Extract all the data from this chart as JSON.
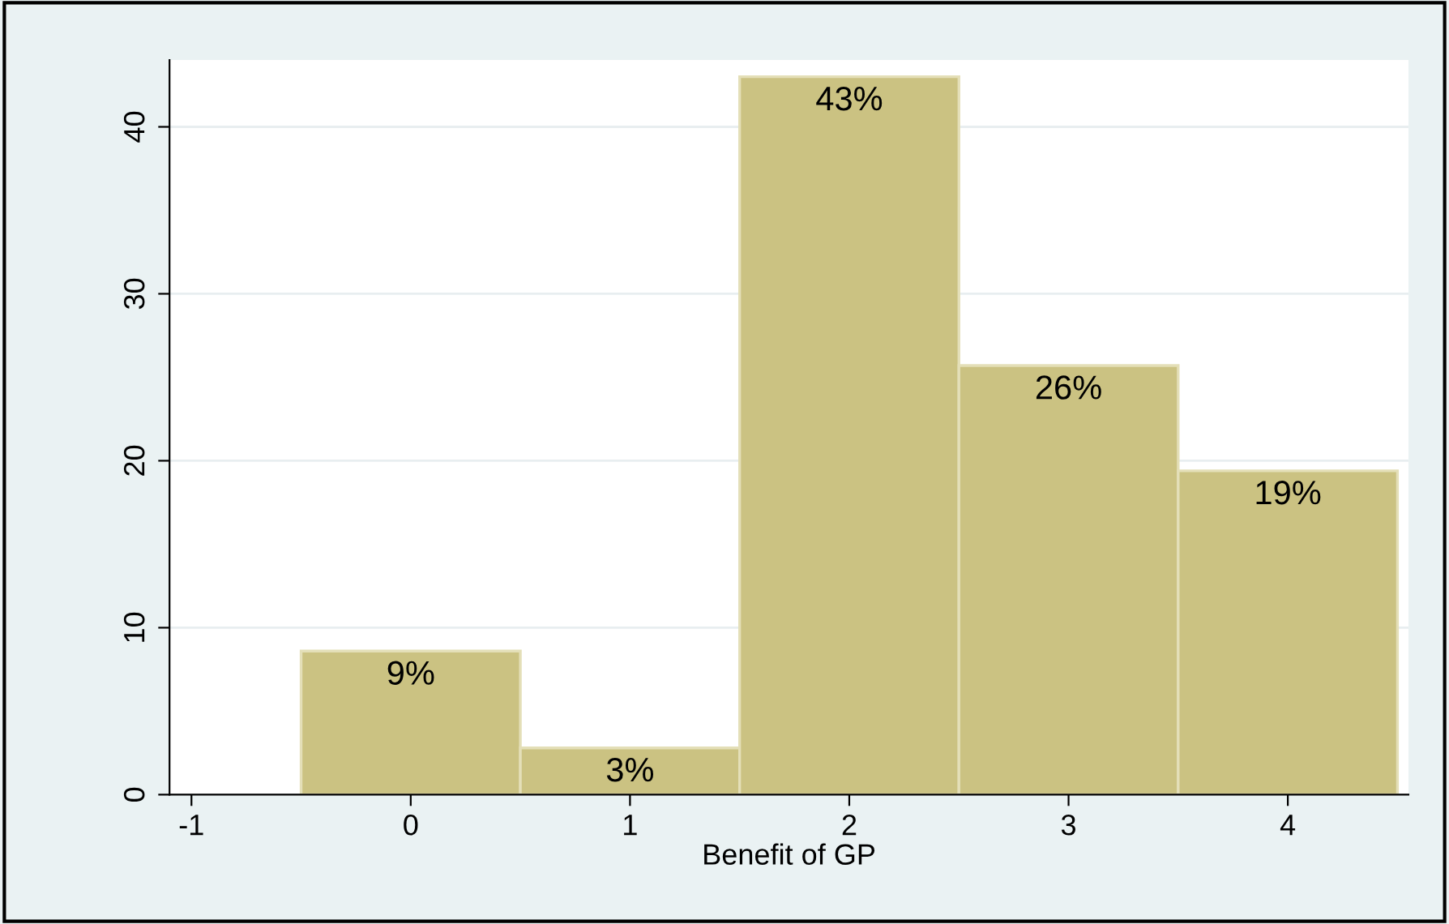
{
  "chart_data": {
    "type": "histogram",
    "xlabel": "Benefit of GP",
    "bins": [
      -0.5,
      0.5,
      1.5,
      2.5,
      3.5,
      4.5
    ],
    "values": [
      8.6,
      2.8,
      43.0,
      25.7,
      19.4
    ],
    "value_labels": [
      "9%",
      "3%",
      "43%",
      "26%",
      "19%"
    ],
    "color": "#cbc282",
    "xlim": [
      -1.1,
      4.55
    ],
    "ylim": [
      0,
      44
    ],
    "xticks": [
      -1,
      0,
      1,
      2,
      3,
      4
    ],
    "yticks": [
      0,
      10,
      20,
      30,
      40
    ],
    "grid": "y"
  }
}
